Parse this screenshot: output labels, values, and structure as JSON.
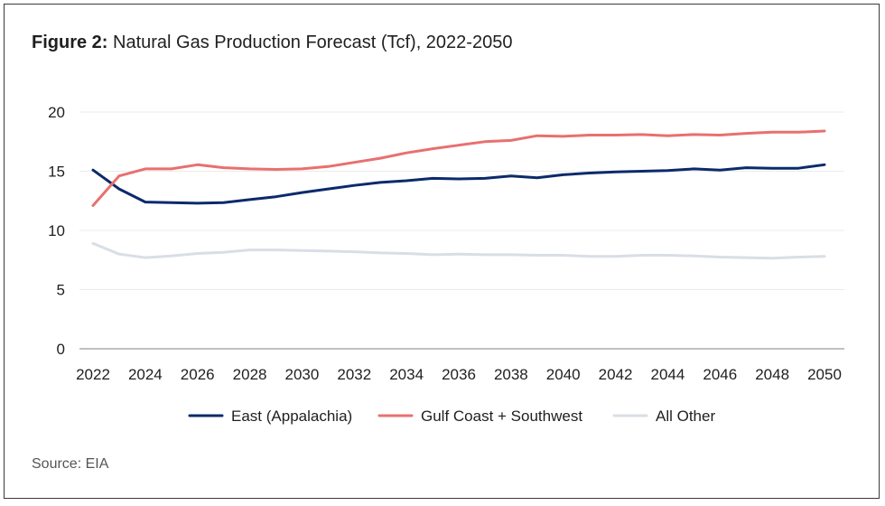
{
  "figure": {
    "title_bold": "Figure 2:",
    "title_rest": "Natural Gas Production Forecast (Tcf), 2022-2050",
    "source": "Source: EIA"
  },
  "colors": {
    "east": "#0c2a6b",
    "gulf": "#e8706f",
    "other": "#d9dee6",
    "grid": "#ebebeb",
    "axis": "#9a9a9a"
  },
  "chart_data": {
    "type": "line",
    "title": "Natural Gas Production Forecast (Tcf), 2022-2050",
    "xlabel": "",
    "ylabel": "",
    "ylim": [
      0,
      20
    ],
    "yticks": [
      "0",
      "5",
      "10",
      "15",
      "20"
    ],
    "xticks": [
      "2022",
      "2024",
      "2026",
      "2028",
      "2030",
      "2032",
      "2034",
      "2036",
      "2038",
      "2040",
      "2042",
      "2044",
      "2046",
      "2048",
      "2050"
    ],
    "x": [
      2022,
      2023,
      2024,
      2025,
      2026,
      2027,
      2028,
      2029,
      2030,
      2031,
      2032,
      2033,
      2034,
      2035,
      2036,
      2037,
      2038,
      2039,
      2040,
      2041,
      2042,
      2043,
      2044,
      2045,
      2046,
      2047,
      2048,
      2049,
      2050
    ],
    "grid": true,
    "legend_position": "bottom",
    "series": [
      {
        "name": "East (Appalachia)",
        "color_key": "east",
        "values": [
          15.1,
          13.5,
          12.4,
          12.35,
          12.3,
          12.35,
          12.6,
          12.85,
          13.2,
          13.5,
          13.8,
          14.05,
          14.2,
          14.4,
          14.35,
          14.4,
          14.6,
          14.45,
          14.7,
          14.85,
          14.95,
          15.0,
          15.05,
          15.2,
          15.1,
          15.3,
          15.25,
          15.25,
          15.55
        ]
      },
      {
        "name": "Gulf Coast + Southwest",
        "color_key": "gulf",
        "values": [
          12.1,
          14.6,
          15.2,
          15.2,
          15.55,
          15.3,
          15.2,
          15.15,
          15.2,
          15.4,
          15.75,
          16.1,
          16.55,
          16.9,
          17.2,
          17.5,
          17.6,
          18.0,
          17.95,
          18.05,
          18.05,
          18.1,
          18.0,
          18.1,
          18.05,
          18.2,
          18.3,
          18.3,
          18.4
        ]
      },
      {
        "name": "All Other",
        "color_key": "other",
        "values": [
          8.9,
          8.0,
          7.7,
          7.85,
          8.05,
          8.15,
          8.35,
          8.35,
          8.3,
          8.25,
          8.2,
          8.1,
          8.05,
          7.95,
          8.0,
          7.95,
          7.95,
          7.9,
          7.9,
          7.8,
          7.8,
          7.9,
          7.9,
          7.85,
          7.75,
          7.7,
          7.65,
          7.75,
          7.8
        ]
      }
    ]
  }
}
